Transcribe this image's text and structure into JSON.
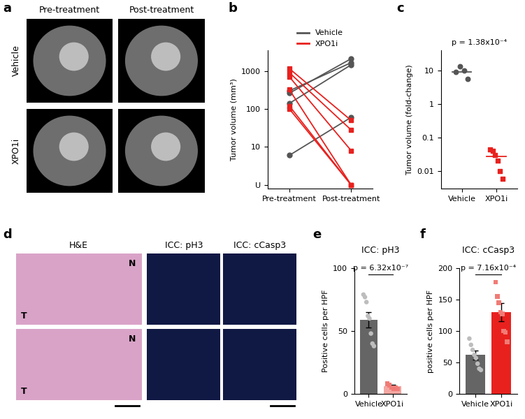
{
  "chart_data": [
    {
      "type": "image",
      "annotations": [
        "a"
      ],
      "column_labels": [
        "Pre-treatment",
        "Post-treatment"
      ],
      "row_labels": [
        "Vehicle",
        "XPO1i"
      ]
    },
    {
      "type": "line",
      "annotations": [
        "b"
      ],
      "ylabel": "Tumor volume (mm³)",
      "categories": [
        "Pre-treatment",
        "Post-treatment"
      ],
      "log": "y",
      "legend": "upper center",
      "ylim": [
        0.8,
        3500
      ],
      "yticks": [
        {
          "value": 1,
          "label": "U"
        },
        10,
        100,
        1000
      ],
      "series": [
        {
          "name": "Vehicle",
          "color": "#555555",
          "marker": "o",
          "values": [
            [
              6,
              60
            ],
            [
              140,
              1450
            ],
            [
              260,
              2100
            ],
            [
              300,
              1650
            ]
          ]
        },
        {
          "name": "XPO1i",
          "color": "#e8211e",
          "marker": "s",
          "values": [
            [
              1150,
              50
            ],
            [
              900,
              28
            ],
            [
              700,
              8
            ],
            [
              320,
              1
            ],
            [
              120,
              1
            ],
            [
              100,
              1
            ]
          ]
        }
      ]
    },
    {
      "type": "scatter",
      "annotations": [
        "c",
        "p = 1.38x10⁻⁴"
      ],
      "ylabel": "Tumor volume (fold-change)",
      "categories": [
        "Vehicle",
        "XPO1i"
      ],
      "log": "y",
      "ylim": [
        0.003,
        40
      ],
      "yticks": [
        0.01,
        0.1,
        1,
        10
      ],
      "values": [
        [
          9,
          13,
          10,
          5.5
        ],
        [
          0.045,
          0.04,
          0.03,
          0.02,
          0.01,
          0.006
        ]
      ],
      "medians": [
        9,
        0.027
      ],
      "colors": [
        "#555555",
        "#e8211e"
      ]
    },
    {
      "type": "image",
      "annotations": [
        "d"
      ],
      "column_labels": [
        "H&E",
        "ICC: pH3",
        "ICC: cCasp3"
      ],
      "image_labels": [
        "N",
        "T"
      ]
    },
    {
      "type": "bar",
      "annotations": [
        "e",
        "p = 6.32x10⁻⁷"
      ],
      "title": "ICC: pH3",
      "ylabel": "Positive cells per HPF",
      "categories": [
        "Vehicle",
        "XPO1i"
      ],
      "values": [
        59,
        6
      ],
      "errors": [
        6,
        1
      ],
      "points": [
        [
          79,
          77,
          73,
          62,
          60,
          48,
          40,
          38
        ],
        [
          8,
          7,
          5,
          4,
          5,
          4
        ]
      ],
      "colors": [
        "#656565",
        "#f3a6a1"
      ],
      "ylim": [
        0,
        100
      ],
      "yticks": [
        0,
        50,
        100
      ]
    },
    {
      "type": "bar",
      "annotations": [
        "f",
        "p = 7.16x10⁻⁴"
      ],
      "title": "ICC: cCasp3",
      "ylabel": "positive cells per HPF",
      "categories": [
        "Vehicle",
        "XPO1i"
      ],
      "values": [
        62,
        130
      ],
      "errors": [
        7,
        14
      ],
      "points": [
        [
          88,
          78,
          70,
          62,
          57,
          48,
          40,
          38
        ],
        [
          178,
          155,
          145,
          130,
          127,
          100,
          98,
          83
        ]
      ],
      "colors": [
        "#656565",
        "#e8211e"
      ],
      "ylim": [
        0,
        200
      ],
      "yticks": [
        0,
        50,
        100,
        150,
        200
      ]
    }
  ]
}
